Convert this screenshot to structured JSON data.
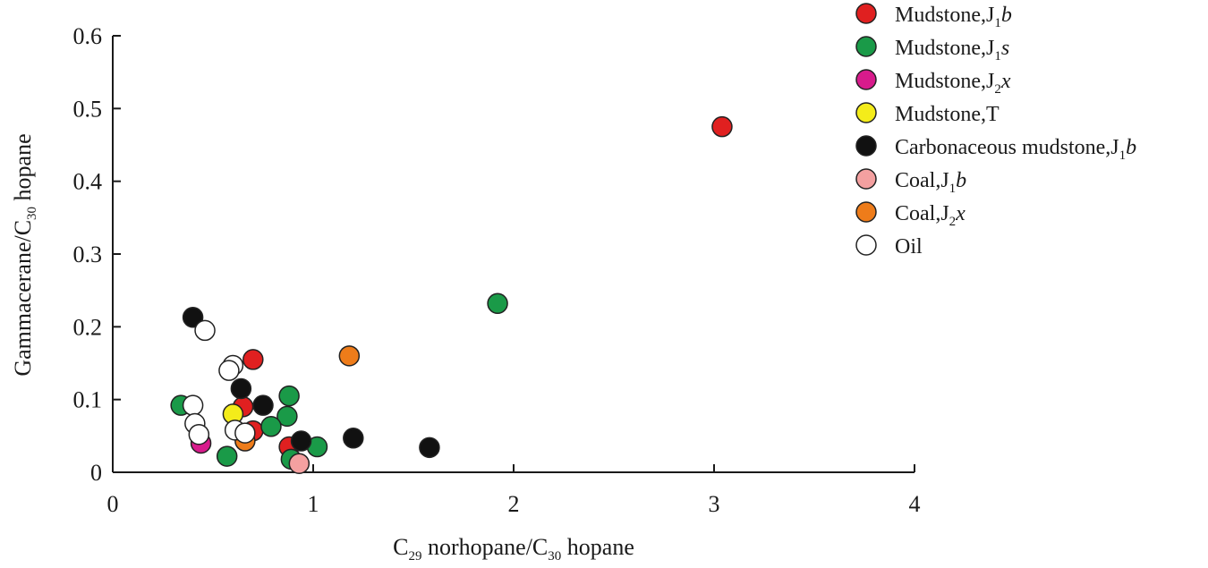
{
  "chart_data": {
    "type": "scatter",
    "xlabel": {
      "a": "C",
      "sub": "29",
      "b": " norhopane/C",
      "sub2": "30",
      "c": " hopane"
    },
    "ylabel": {
      "a": "Gammacerane/C",
      "sub": "30",
      "b": " hopane"
    },
    "xlim": [
      0,
      4
    ],
    "ylim": [
      0,
      0.6
    ],
    "x_ticks": [
      "0",
      "1",
      "2",
      "3",
      "4"
    ],
    "y_ticks": [
      "0",
      "0.1",
      "0.2",
      "0.3",
      "0.4",
      "0.5",
      "0.6"
    ],
    "grid": false,
    "legend_position": "top-right",
    "series": [
      {
        "name": {
          "a": "Mudstone,J",
          "sub": "1",
          "it": "b"
        },
        "color": "#e02020",
        "points": [
          [
            3.04,
            0.475
          ],
          [
            0.7,
            0.155
          ],
          [
            0.65,
            0.09
          ],
          [
            0.7,
            0.057
          ],
          [
            0.88,
            0.035
          ]
        ]
      },
      {
        "name": {
          "a": "Mudstone,J",
          "sub": "1",
          "it": "s"
        },
        "color": "#1a9a48",
        "points": [
          [
            1.92,
            0.232
          ],
          [
            0.88,
            0.105
          ],
          [
            0.87,
            0.077
          ],
          [
            0.79,
            0.063
          ],
          [
            0.34,
            0.092
          ],
          [
            0.57,
            0.022
          ],
          [
            0.89,
            0.018
          ],
          [
            1.02,
            0.035
          ]
        ]
      },
      {
        "name": {
          "a": "Mudstone,J",
          "sub": "2",
          "it": "x"
        },
        "color": "#d81b8c",
        "points": [
          [
            0.44,
            0.04
          ]
        ]
      },
      {
        "name": {
          "a": "Mudstone,T",
          "sub": "",
          "it": ""
        },
        "color": "#f4ec1a",
        "points": [
          [
            0.6,
            0.08
          ]
        ]
      },
      {
        "name": {
          "a": "Carbonaceous mudstone,J",
          "sub": "1",
          "it": "b"
        },
        "color": "#111111",
        "points": [
          [
            0.4,
            0.213
          ],
          [
            0.64,
            0.115
          ],
          [
            0.75,
            0.092
          ],
          [
            0.94,
            0.043
          ],
          [
            1.2,
            0.047
          ],
          [
            1.58,
            0.034
          ]
        ]
      },
      {
        "name": {
          "a": "Coal,J",
          "sub": "1",
          "it": "b"
        },
        "color": "#f4a0a0",
        "points": [
          [
            0.93,
            0.012
          ]
        ]
      },
      {
        "name": {
          "a": "Coal,J",
          "sub": "2",
          "it": "x"
        },
        "color": "#ee7c1a",
        "points": [
          [
            1.18,
            0.16
          ],
          [
            0.66,
            0.043
          ]
        ]
      },
      {
        "name": {
          "a": "Oil",
          "sub": "",
          "it": ""
        },
        "color": "#ffffff",
        "points": [
          [
            0.46,
            0.195
          ],
          [
            0.6,
            0.147
          ],
          [
            0.58,
            0.14
          ],
          [
            0.4,
            0.092
          ],
          [
            0.41,
            0.067
          ],
          [
            0.43,
            0.052
          ],
          [
            0.61,
            0.058
          ],
          [
            0.66,
            0.054
          ]
        ]
      }
    ]
  }
}
